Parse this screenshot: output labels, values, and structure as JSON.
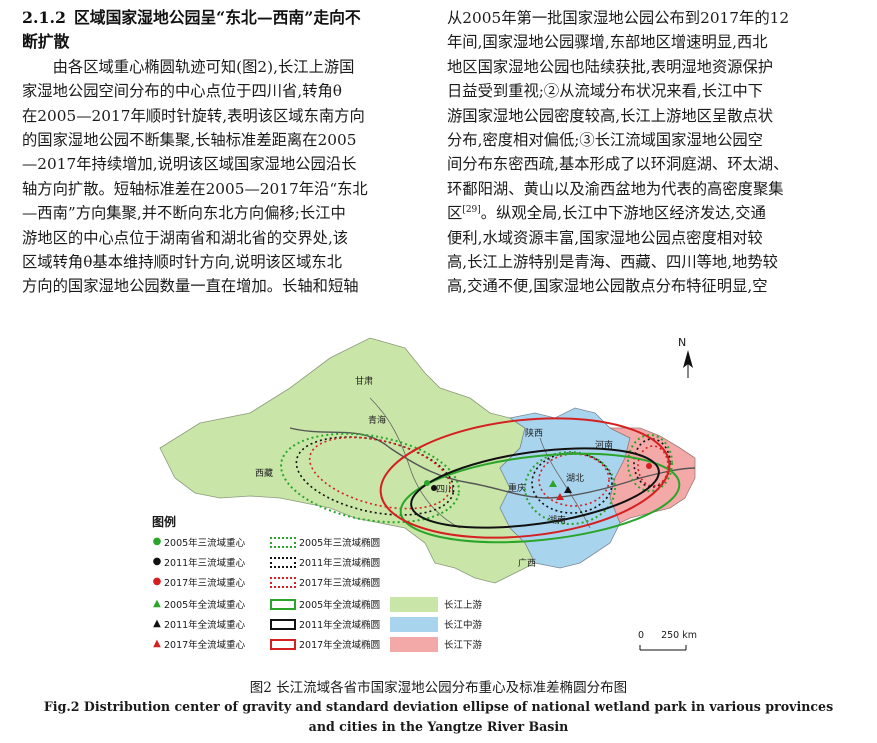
{
  "section": {
    "number": "2.1.2",
    "title_line1": "区域国家湿地公园呈“东北—西南”走向不",
    "title_line2": "断扩散"
  },
  "left_paragraph": [
    "由各区域重心椭圆轨迹可知(图2),长江上游国",
    "家湿地公园空间分布的中心点位于四川省,转角θ",
    "在2005—2017年顺时针旋转,表明该区域东南方向",
    "的国家湿地公园不断集聚,长轴标准差距离在2005",
    "—2017年持续增加,说明该区域国家湿地公园沿长",
    "轴方向扩散。短轴标准差在2005—2017年沿“东北",
    "—西南”方向集聚,并不断向东北方向偏移;长江中",
    "游地区的中心点位于湖南省和湖北省的交界处,该",
    "区域转角θ基本维持顺时针方向,说明该区域东北",
    "方向的国家湿地公园数量一直在增加。长轴和短轴"
  ],
  "right_paragraph": [
    "从2005年第一批国家湿地公园公布到2017年的12",
    "年间,国家湿地公园骤增,东部地区增速明显,西北",
    "地区国家湿地公园也陆续获批,表明湿地资源保护",
    "日益受到重视;②从流域分布状况来看,长江中下",
    "游国家湿地公园密度较高,长江上游地区呈散点状",
    "分布,密度相对偏低;③长江流域国家湿地公园空",
    "间分布东密西疏,基本形成了以环洞庭湖、环太湖、",
    "环鄱阳湖、黄山以及渝西盆地为代表的高密度聚集",
    "区",
    "。纵观全局,长江中下游地区经济发达,交通",
    "便利,水域资源丰富,国家湿地公园点密度相对较",
    "高,长江上游特别是青海、西藏、四川等地,地势较",
    "高,交通不便,国家湿地公园散点分布特征明显,空"
  ],
  "citation": "[29]",
  "map": {
    "north_label": "N",
    "scale_zero": "0",
    "scale_value": "250 km",
    "regions": [
      "甘肃",
      "青海",
      "西藏",
      "四川",
      "重庆",
      "陕西",
      "河南",
      "湖北",
      "湖南",
      "广西"
    ],
    "legend_title": "图例",
    "legend": {
      "c2005_3": "2005年三流域重心",
      "e2005_3": "2005年三流域椭圆",
      "c2011_3": "2011年三流域重心",
      "e2011_3": "2011年三流域椭圆",
      "c2017_3": "2017年三流域重心",
      "e2017_3": "2017年三流域椭圆",
      "c2005_all": "2005年全流域重心",
      "e2005_all": "2005年全流域椭圆",
      "c2011_all": "2011年全流域重心",
      "e2011_all": "2011年全流域椭圆",
      "c2017_all": "2017年全流域重心",
      "e2017_all": "2017年全流域椭圆",
      "upper": "长江上游",
      "middle": "长江中游",
      "lower": "长江下游"
    },
    "colors": {
      "upper": "#c9e6a8",
      "middle": "#a9d4ee",
      "lower": "#f4a9a9",
      "green": "#2aa52a",
      "black": "#111111",
      "red": "#d42020"
    }
  },
  "caption_cn": "图2   长江流域各省市国家湿地公园分布重心及标准差椭圆分布图",
  "caption_en_line1": "Fig.2   Distribution center of gravity and standard deviation ellipse of national wetland park in various provinces",
  "caption_en_line2": "and cities in the Yangtze River Basin"
}
